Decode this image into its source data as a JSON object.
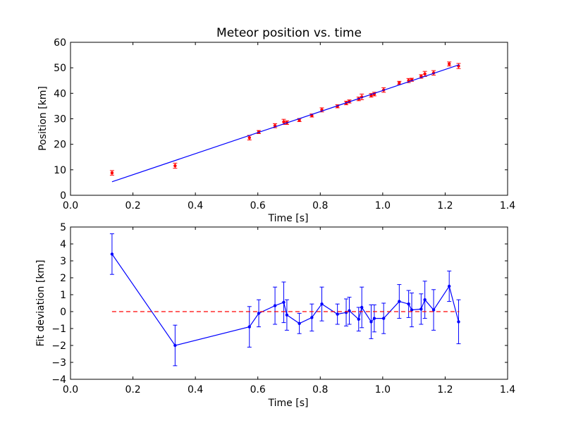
{
  "chart_data": [
    {
      "type": "scatter",
      "title": "Meteor position vs. time",
      "xlabel": "Time [s]",
      "ylabel": "Position [km]",
      "xlim": [
        0.0,
        1.4
      ],
      "ylim": [
        0,
        60
      ],
      "xticks": [
        "0.0",
        "0.2",
        "0.4",
        "0.6",
        "0.8",
        "1.0",
        "1.2",
        "1.4"
      ],
      "yticks": [
        "0",
        "10",
        "20",
        "30",
        "40",
        "50",
        "60"
      ],
      "grid": false,
      "series": [
        {
          "kind": "errorbar-points",
          "color": "#ff0000",
          "x": [
            0.133,
            0.335,
            0.573,
            0.603,
            0.655,
            0.683,
            0.693,
            0.733,
            0.773,
            0.805,
            0.855,
            0.883,
            0.893,
            0.923,
            0.933,
            0.963,
            0.973,
            1.003,
            1.053,
            1.083,
            1.093,
            1.123,
            1.135,
            1.163,
            1.213,
            1.243
          ],
          "y": [
            8.8,
            11.6,
            22.6,
            24.8,
            27.3,
            28.8,
            28.5,
            29.5,
            31.3,
            33.5,
            34.9,
            36.2,
            36.8,
            37.8,
            38.6,
            39.2,
            39.7,
            41.3,
            44.1,
            45.0,
            45.3,
            46.6,
            47.6,
            48.0,
            51.5,
            50.7
          ],
          "yerr": [
            0.9,
            1.0,
            0.9,
            0.6,
            0.8,
            1.0,
            0.7,
            0.6,
            0.6,
            0.8,
            0.6,
            0.7,
            0.6,
            0.7,
            1.1,
            0.7,
            0.7,
            0.9,
            0.6,
            0.8,
            0.6,
            0.7,
            1.0,
            0.9,
            0.8,
            1.0
          ]
        },
        {
          "kind": "line",
          "color": "#0000ff",
          "x": [
            0.133,
            1.245
          ],
          "y": [
            5.3,
            51.2
          ]
        }
      ]
    },
    {
      "type": "line",
      "xlabel": "Time [s]",
      "ylabel": "Fit deviation [km]",
      "xlim": [
        0.0,
        1.4
      ],
      "ylim": [
        -4,
        5
      ],
      "xticks": [
        "0.0",
        "0.2",
        "0.4",
        "0.6",
        "0.8",
        "1.0",
        "1.2",
        "1.4"
      ],
      "yticks": [
        "−4",
        "−3",
        "−2",
        "−1",
        "0",
        "1",
        "2",
        "3",
        "4",
        "5"
      ],
      "grid": false,
      "series": [
        {
          "kind": "errorbar-line",
          "color": "#0000ff",
          "x": [
            0.133,
            0.335,
            0.573,
            0.603,
            0.655,
            0.683,
            0.693,
            0.733,
            0.773,
            0.805,
            0.855,
            0.883,
            0.893,
            0.923,
            0.933,
            0.963,
            0.973,
            1.003,
            1.053,
            1.083,
            1.093,
            1.123,
            1.135,
            1.163,
            1.213,
            1.243
          ],
          "y": [
            3.4,
            -2.0,
            -0.9,
            -0.1,
            0.35,
            0.55,
            -0.2,
            -0.7,
            -0.35,
            0.45,
            -0.15,
            -0.05,
            0.05,
            -0.45,
            0.25,
            -0.6,
            -0.4,
            -0.4,
            0.6,
            0.45,
            0.1,
            0.15,
            0.7,
            0.1,
            1.5,
            -0.6
          ],
          "yerr": [
            1.2,
            1.2,
            1.2,
            0.8,
            1.1,
            1.2,
            0.9,
            0.6,
            0.8,
            1.0,
            0.6,
            0.8,
            0.8,
            0.7,
            1.2,
            1.0,
            0.8,
            0.9,
            1.0,
            0.8,
            1.0,
            0.9,
            1.1,
            1.2,
            0.9,
            1.3
          ]
        },
        {
          "kind": "dashed-line",
          "color": "#ff0000",
          "x": [
            0.133,
            1.245
          ],
          "y": [
            0,
            0
          ]
        }
      ]
    }
  ]
}
